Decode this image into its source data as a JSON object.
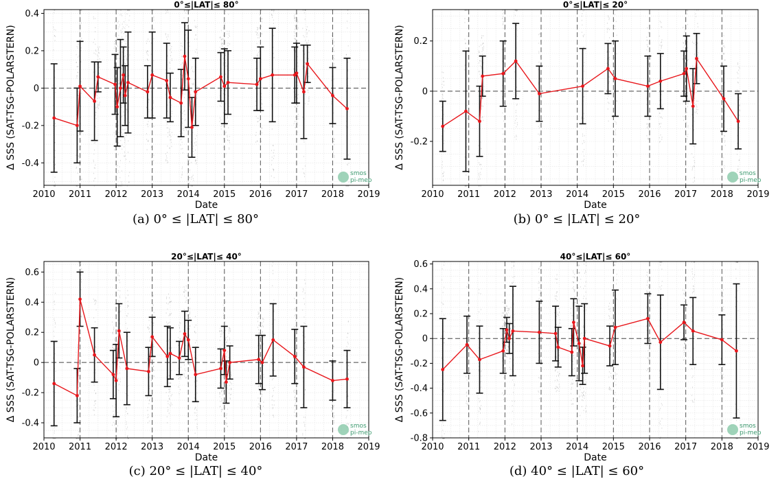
{
  "chart_data": [
    {
      "type": "line",
      "title": "0°≤|LAT|≤ 80°",
      "caption": "(a) 0° ≤ |LAT| ≤ 80°",
      "xlabel": "Date",
      "ylabel": "Δ SSS (SAT-TSG-POLARSTERN)",
      "xlim": [
        2010,
        2019
      ],
      "ylim": [
        -0.52,
        0.42
      ],
      "xticks": [
        "2010",
        "2011",
        "2012",
        "2013",
        "2014",
        "2015",
        "2016",
        "2017",
        "2018",
        "2019"
      ],
      "yticks": [
        "-0.4",
        "-0.2",
        "0",
        "0.2",
        "0.4"
      ],
      "ytick_values": [
        -0.4,
        -0.2,
        0,
        0.2,
        0.4
      ],
      "grid": true,
      "logo": "smos pi-mep",
      "series": [
        {
          "x": [
            2010.28,
            2010.92,
            2011.0,
            2011.4,
            2011.5,
            2011.97,
            2012.03,
            2012.12,
            2012.2,
            2012.25,
            2012.33,
            2012.87,
            2013.0,
            2013.4,
            2013.5,
            2013.8,
            2013.9,
            2014.0,
            2014.1,
            2014.2,
            2014.9,
            2015.0,
            2015.1,
            2015.9,
            2016.0,
            2016.33,
            2016.95,
            2017.0,
            2017.2,
            2017.3,
            2018.0,
            2018.4
          ],
          "y": [
            -0.16,
            -0.2,
            0.01,
            -0.07,
            0.06,
            0.02,
            -0.1,
            0.0,
            0.07,
            -0.04,
            0.03,
            -0.02,
            0.07,
            0.04,
            -0.05,
            -0.08,
            0.17,
            0.05,
            -0.21,
            -0.02,
            0.06,
            0.01,
            0.03,
            0.02,
            0.05,
            0.07,
            0.07,
            0.08,
            -0.02,
            0.13,
            -0.04,
            -0.11
          ],
          "err": [
            0.29,
            0.2,
            0.24,
            0.21,
            0.08,
            0.16,
            0.21,
            0.26,
            0.15,
            0.16,
            0.27,
            0.14,
            0.23,
            0.2,
            0.13,
            0.18,
            0.18,
            0.26,
            0.16,
            0.18,
            0.13,
            0.2,
            0.17,
            0.14,
            0.17,
            0.25,
            0.15,
            0.16,
            0.25,
            0.1,
            0.15,
            0.27
          ]
        }
      ]
    },
    {
      "type": "line",
      "title": "0°≤|LAT|≤ 20°",
      "caption": "(b) 0° ≤ |LAT| ≤ 20°",
      "xlabel": "Date",
      "ylabel": "Δ SSS (SAT-TSG-POLARSTERN)",
      "xlim": [
        2010,
        2019
      ],
      "ylim": [
        -0.375,
        0.325
      ],
      "xticks": [
        "2010",
        "2011",
        "2012",
        "2013",
        "2014",
        "2015",
        "2016",
        "2017",
        "2018",
        "2019"
      ],
      "yticks": [
        "-0.2",
        "0",
        "0.2"
      ],
      "ytick_values": [
        -0.2,
        0,
        0.2
      ],
      "grid": true,
      "logo": "smos pi-mep",
      "series": [
        {
          "x": [
            2010.28,
            2010.92,
            2011.3,
            2011.38,
            2011.95,
            2012.3,
            2012.95,
            2014.15,
            2014.85,
            2015.05,
            2015.95,
            2016.3,
            2016.95,
            2017.02,
            2017.2,
            2017.3,
            2018.05,
            2018.45
          ],
          "y": [
            -0.14,
            -0.08,
            -0.12,
            0.06,
            0.07,
            0.12,
            -0.01,
            0.02,
            0.09,
            0.05,
            0.02,
            0.04,
            0.07,
            0.09,
            -0.06,
            0.13,
            -0.03,
            -0.12
          ],
          "err": [
            0.1,
            0.24,
            0.14,
            0.08,
            0.13,
            0.15,
            0.11,
            0.15,
            0.1,
            0.15,
            0.12,
            0.11,
            0.09,
            0.13,
            0.15,
            0.1,
            0.13,
            0.11
          ]
        }
      ]
    },
    {
      "type": "line",
      "title": "20°≤|LAT|≤ 40°",
      "caption": "(c) 20° ≤ |LAT| ≤ 40°",
      "xlabel": "Date",
      "ylabel": "Δ SSS (SAT-TSG-POLARSTERN)",
      "xlim": [
        2010,
        2019
      ],
      "ylim": [
        -0.5,
        0.67
      ],
      "xticks": [
        "2010",
        "2011",
        "2012",
        "2013",
        "2014",
        "2015",
        "2016",
        "2017",
        "2018",
        "2019"
      ],
      "yticks": [
        "-0.4",
        "-0.2",
        "0",
        "0.2",
        "0.4",
        "0.6"
      ],
      "ytick_values": [
        -0.4,
        -0.2,
        0,
        0.2,
        0.4,
        0.6
      ],
      "grid": true,
      "logo": "smos pi-mep",
      "series": [
        {
          "x": [
            2010.28,
            2010.92,
            2011.0,
            2011.4,
            2011.92,
            2012.0,
            2012.08,
            2012.3,
            2012.9,
            2013.0,
            2013.42,
            2013.5,
            2013.75,
            2013.9,
            2014.0,
            2014.2,
            2014.9,
            2015.0,
            2015.05,
            2015.15,
            2015.95,
            2016.05,
            2016.35,
            2016.95,
            2017.2,
            2018.0,
            2018.4
          ],
          "y": [
            -0.14,
            -0.22,
            0.42,
            0.05,
            -0.08,
            -0.12,
            0.21,
            -0.04,
            -0.06,
            0.17,
            0.04,
            0.06,
            0.03,
            0.19,
            0.15,
            -0.08,
            -0.04,
            0.08,
            -0.13,
            0.0,
            0.02,
            0.0,
            0.15,
            0.04,
            -0.03,
            -0.12,
            -0.11
          ],
          "err": [
            0.28,
            0.18,
            0.18,
            0.18,
            0.16,
            0.24,
            0.18,
            0.24,
            0.16,
            0.13,
            0.2,
            0.17,
            0.11,
            0.15,
            0.13,
            0.18,
            0.13,
            0.16,
            0.14,
            0.11,
            0.16,
            0.18,
            0.24,
            0.18,
            0.27,
            0.13,
            0.19
          ]
        }
      ]
    },
    {
      "type": "line",
      "title": "40°≤|LAT|≤ 60°",
      "caption": "(d) 40° ≤ |LAT| ≤ 60°",
      "xlabel": "Date",
      "ylabel": "Δ SSS (SAT-TSG-POLARSTERN)",
      "xlim": [
        2010,
        2019
      ],
      "ylim": [
        -0.8,
        0.62
      ],
      "xticks": [
        "2010",
        "2011",
        "2012",
        "2013",
        "2014",
        "2015",
        "2016",
        "2017",
        "2018",
        "2019"
      ],
      "yticks": [
        "-0.8",
        "-0.6",
        "-0.4",
        "-0.2",
        "0",
        "0.2",
        "0.4",
        "0.6"
      ],
      "ytick_values": [
        -0.8,
        -0.6,
        -0.4,
        -0.2,
        0,
        0.2,
        0.4,
        0.6
      ],
      "grid": true,
      "logo": "smos pi-mep",
      "series": [
        {
          "x": [
            2010.28,
            2010.95,
            2011.3,
            2011.95,
            2012.05,
            2012.12,
            2012.22,
            2012.95,
            2013.4,
            2013.47,
            2013.85,
            2013.9,
            2014.05,
            2014.15,
            2014.2,
            2014.9,
            2015.05,
            2015.95,
            2016.3,
            2016.95,
            2017.2,
            2018.0,
            2018.4
          ],
          "y": [
            -0.25,
            -0.05,
            -0.17,
            -0.1,
            0.07,
            0.0,
            0.06,
            0.05,
            0.04,
            -0.07,
            -0.11,
            0.13,
            -0.04,
            -0.22,
            0.0,
            -0.06,
            0.09,
            0.16,
            -0.03,
            0.13,
            0.06,
            -0.01,
            -0.1
          ],
          "err": [
            0.41,
            0.23,
            0.27,
            0.18,
            0.1,
            0.12,
            0.36,
            0.25,
            0.22,
            0.16,
            0.19,
            0.19,
            0.3,
            0.15,
            0.28,
            0.16,
            0.3,
            0.2,
            0.38,
            0.14,
            0.27,
            0.2,
            0.54
          ]
        }
      ]
    }
  ]
}
